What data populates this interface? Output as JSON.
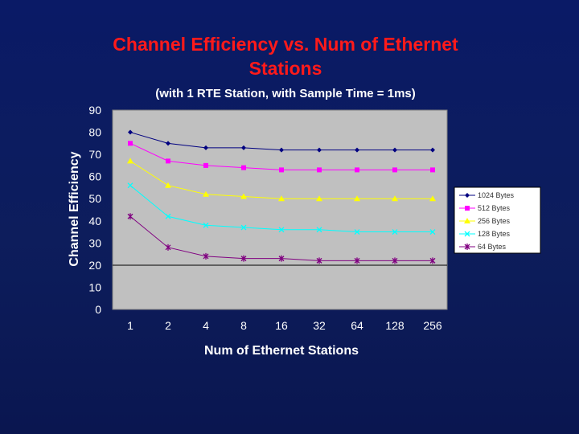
{
  "chart_data": {
    "type": "line",
    "title": "Channel Efficiency vs. Num of Ethernet Stations",
    "subtitle": "(with 1 RTE Station, with Sample Time = 1ms)",
    "xlabel": "Num of Ethernet Stations",
    "ylabel": "Channel Efficiency",
    "categories": [
      "1",
      "2",
      "4",
      "8",
      "16",
      "32",
      "64",
      "128",
      "256"
    ],
    "yticks": [
      "0",
      "10",
      "20",
      "30",
      "40",
      "50",
      "60",
      "70",
      "80",
      "90"
    ],
    "ylim": [
      0,
      90
    ],
    "grid": false,
    "legend_position": "right",
    "series": [
      {
        "name": "1024 Bytes",
        "color": "#000080",
        "marker": "diamond",
        "values": [
          80,
          75,
          73,
          73,
          72,
          72,
          72,
          72,
          72
        ]
      },
      {
        "name": "512 Bytes",
        "color": "#ff00ff",
        "marker": "square",
        "values": [
          75,
          67,
          65,
          64,
          63,
          63,
          63,
          63,
          63
        ]
      },
      {
        "name": "256 Bytes",
        "color": "#ffff00",
        "marker": "triangle",
        "values": [
          67,
          56,
          52,
          51,
          50,
          50,
          50,
          50,
          50
        ]
      },
      {
        "name": "128 Bytes",
        "color": "#00ffff",
        "marker": "x",
        "values": [
          56,
          42,
          38,
          37,
          36,
          36,
          35,
          35,
          35
        ]
      },
      {
        "name": "64 Bytes",
        "color": "#800080",
        "marker": "star",
        "values": [
          42,
          28,
          24,
          23,
          23,
          22,
          22,
          22,
          22
        ]
      }
    ]
  }
}
